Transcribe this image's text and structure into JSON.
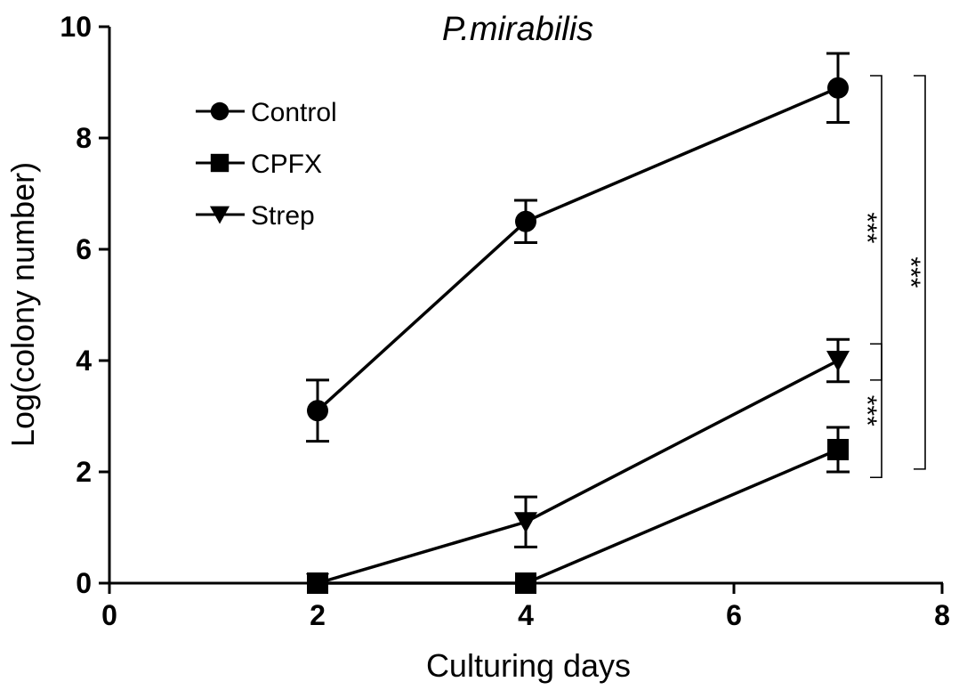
{
  "chart_data": {
    "type": "line",
    "title": "P.mirabilis",
    "xlabel": "Culturing days",
    "ylabel": "Log(colony number)",
    "xlim": [
      0,
      8
    ],
    "ylim": [
      0,
      10
    ],
    "xticks": [
      0,
      2,
      4,
      6,
      8
    ],
    "yticks": [
      0,
      2,
      4,
      6,
      8,
      10
    ],
    "grid": false,
    "legend_position": "top-left",
    "series": [
      {
        "name": "Control",
        "marker": "circle",
        "x": [
          2,
          4,
          7
        ],
        "y": [
          3.1,
          6.5,
          8.9
        ],
        "err": [
          0.55,
          0.38,
          0.62
        ]
      },
      {
        "name": "CPFX",
        "marker": "square",
        "x": [
          2,
          4,
          7
        ],
        "y": [
          0,
          0,
          2.4
        ],
        "err": [
          0,
          0,
          0.4
        ]
      },
      {
        "name": "Strep",
        "marker": "triangle-down",
        "x": [
          2,
          4,
          7
        ],
        "y": [
          0,
          1.1,
          4.0
        ],
        "err": [
          0,
          0.45,
          0.38
        ]
      }
    ],
    "significance": [
      {
        "label": "***",
        "from": "Control",
        "to": "Strep"
      },
      {
        "label": "***",
        "from": "Strep",
        "to": "CPFX"
      },
      {
        "label": "***",
        "from": "Control",
        "to": "CPFX"
      }
    ],
    "colors": {
      "line": "#000000",
      "background": "#ffffff"
    }
  }
}
